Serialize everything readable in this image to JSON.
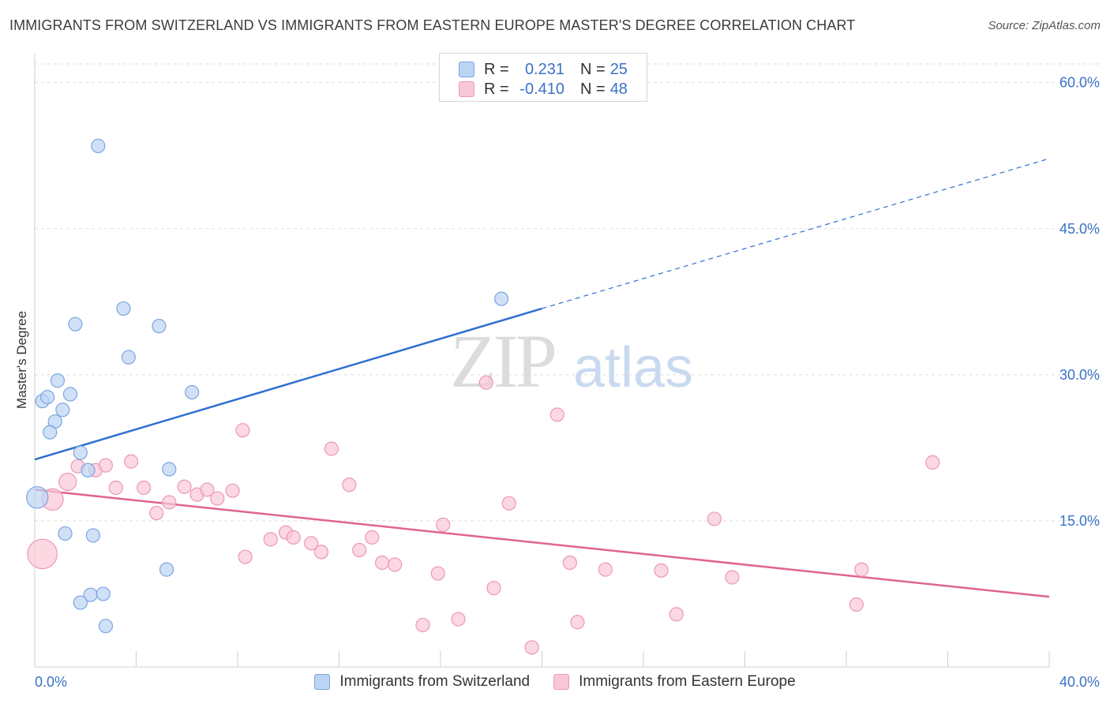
{
  "title": "IMMIGRANTS FROM SWITZERLAND VS IMMIGRANTS FROM EASTERN EUROPE MASTER'S DEGREE CORRELATION CHART",
  "source": "Source: ZipAtlas.com",
  "watermark": {
    "zip": "ZIP",
    "atlas": "atlas"
  },
  "legend": {
    "rows": [
      {
        "r_label": "R =",
        "r_value": "0.231",
        "n_label": "N =",
        "n_value": "25",
        "fill": "#bcd4f4",
        "stroke": "#7aa5e0"
      },
      {
        "r_label": "R =",
        "r_value": "-0.410",
        "n_label": "N =",
        "n_value": "48",
        "fill": "#f9c8d6",
        "stroke": "#ec98b4"
      }
    ]
  },
  "colors": {
    "blue_fill": "#bcd4f4",
    "blue_stroke": "#7aa5e0",
    "blue_line": "#2f6fd0",
    "pink_fill": "#f9c8d6",
    "pink_stroke": "#ec98b4",
    "pink_line": "#e0648e",
    "tick_label": "#3b72c8",
    "grid": "#dddddd"
  },
  "chart_data": {
    "type": "scatter",
    "title": "IMMIGRANTS FROM SWITZERLAND VS IMMIGRANTS FROM EASTERN EUROPE MASTER'S DEGREE CORRELATION CHART",
    "xlabel": "",
    "ylabel": "Master's Degree",
    "xlim": [
      0,
      40
    ],
    "ylim": [
      0,
      62
    ],
    "x_tick_labels": [
      "0.0%",
      "40.0%"
    ],
    "y_ticks": [
      15,
      30,
      45,
      60
    ],
    "y_tick_labels": [
      "15.0%",
      "30.0%",
      "45.0%",
      "60.0%"
    ],
    "grid": true,
    "legend_position": "top-center",
    "series": [
      {
        "name": "Immigrants from Switzerland",
        "points": [
          {
            "x": 2.5,
            "y": 53.5,
            "s": 1
          },
          {
            "x": 0.3,
            "y": 27.3,
            "s": 1
          },
          {
            "x": 0.5,
            "y": 27.7,
            "s": 1
          },
          {
            "x": 0.9,
            "y": 29.4,
            "s": 1
          },
          {
            "x": 1.4,
            "y": 28.0,
            "s": 1
          },
          {
            "x": 1.1,
            "y": 26.4,
            "s": 1
          },
          {
            "x": 0.8,
            "y": 25.2,
            "s": 1
          },
          {
            "x": 0.6,
            "y": 24.1,
            "s": 1
          },
          {
            "x": 1.6,
            "y": 35.2,
            "s": 1
          },
          {
            "x": 3.5,
            "y": 36.8,
            "s": 1
          },
          {
            "x": 3.7,
            "y": 31.8,
            "s": 1
          },
          {
            "x": 4.9,
            "y": 35.0,
            "s": 1
          },
          {
            "x": 6.2,
            "y": 28.2,
            "s": 1
          },
          {
            "x": 1.8,
            "y": 22.0,
            "s": 1
          },
          {
            "x": 2.1,
            "y": 20.2,
            "s": 1
          },
          {
            "x": 5.3,
            "y": 20.3,
            "s": 1
          },
          {
            "x": 0.1,
            "y": 17.4,
            "s": 1.6
          },
          {
            "x": 1.2,
            "y": 13.7,
            "s": 1
          },
          {
            "x": 2.3,
            "y": 13.5,
            "s": 1
          },
          {
            "x": 5.2,
            "y": 10.0,
            "s": 1
          },
          {
            "x": 2.2,
            "y": 7.4,
            "s": 1
          },
          {
            "x": 2.7,
            "y": 7.5,
            "s": 1
          },
          {
            "x": 1.8,
            "y": 6.6,
            "s": 1
          },
          {
            "x": 2.8,
            "y": 4.2,
            "s": 1
          },
          {
            "x": 18.4,
            "y": 37.8,
            "s": 1
          }
        ],
        "trend": {
          "x0": 0,
          "y0": 21.3,
          "x1": 20,
          "y1": 36.8,
          "dash_to_x": 40,
          "dash_to_y": 52.2
        }
      },
      {
        "name": "Immigrants from Eastern Europe",
        "points": [
          {
            "x": 0.3,
            "y": 11.6,
            "s": 2.2
          },
          {
            "x": 0.7,
            "y": 17.2,
            "s": 1.6
          },
          {
            "x": 1.3,
            "y": 19.0,
            "s": 1.3
          },
          {
            "x": 1.7,
            "y": 20.6,
            "s": 1
          },
          {
            "x": 2.4,
            "y": 20.2,
            "s": 1
          },
          {
            "x": 2.8,
            "y": 20.7,
            "s": 1
          },
          {
            "x": 3.2,
            "y": 18.4,
            "s": 1
          },
          {
            "x": 3.8,
            "y": 21.1,
            "s": 1
          },
          {
            "x": 4.3,
            "y": 18.4,
            "s": 1
          },
          {
            "x": 4.8,
            "y": 15.8,
            "s": 1
          },
          {
            "x": 5.3,
            "y": 16.9,
            "s": 1
          },
          {
            "x": 5.9,
            "y": 18.5,
            "s": 1
          },
          {
            "x": 6.4,
            "y": 17.7,
            "s": 1
          },
          {
            "x": 6.8,
            "y": 18.2,
            "s": 1
          },
          {
            "x": 7.2,
            "y": 17.3,
            "s": 1
          },
          {
            "x": 7.8,
            "y": 18.1,
            "s": 1
          },
          {
            "x": 8.2,
            "y": 24.3,
            "s": 1
          },
          {
            "x": 8.3,
            "y": 11.3,
            "s": 1
          },
          {
            "x": 9.3,
            "y": 13.1,
            "s": 1
          },
          {
            "x": 9.9,
            "y": 13.8,
            "s": 1
          },
          {
            "x": 10.2,
            "y": 13.3,
            "s": 1
          },
          {
            "x": 10.9,
            "y": 12.7,
            "s": 1
          },
          {
            "x": 11.7,
            "y": 22.4,
            "s": 1
          },
          {
            "x": 11.3,
            "y": 11.8,
            "s": 1
          },
          {
            "x": 12.4,
            "y": 18.7,
            "s": 1
          },
          {
            "x": 12.8,
            "y": 12.0,
            "s": 1
          },
          {
            "x": 13.3,
            "y": 13.3,
            "s": 1
          },
          {
            "x": 13.7,
            "y": 10.7,
            "s": 1
          },
          {
            "x": 14.2,
            "y": 10.5,
            "s": 1
          },
          {
            "x": 15.3,
            "y": 4.3,
            "s": 1
          },
          {
            "x": 15.9,
            "y": 9.6,
            "s": 1
          },
          {
            "x": 16.1,
            "y": 14.6,
            "s": 1
          },
          {
            "x": 16.7,
            "y": 4.9,
            "s": 1
          },
          {
            "x": 17.8,
            "y": 29.2,
            "s": 1
          },
          {
            "x": 18.1,
            "y": 8.1,
            "s": 1
          },
          {
            "x": 18.7,
            "y": 16.8,
            "s": 1
          },
          {
            "x": 19.6,
            "y": 2.0,
            "s": 1
          },
          {
            "x": 20.6,
            "y": 25.9,
            "s": 1
          },
          {
            "x": 21.1,
            "y": 10.7,
            "s": 1
          },
          {
            "x": 21.4,
            "y": 4.6,
            "s": 1
          },
          {
            "x": 22.5,
            "y": 10.0,
            "s": 1
          },
          {
            "x": 24.7,
            "y": 9.9,
            "s": 1
          },
          {
            "x": 25.3,
            "y": 5.4,
            "s": 1
          },
          {
            "x": 26.8,
            "y": 15.2,
            "s": 1
          },
          {
            "x": 27.5,
            "y": 9.2,
            "s": 1
          },
          {
            "x": 32.4,
            "y": 6.4,
            "s": 1
          },
          {
            "x": 32.6,
            "y": 10.0,
            "s": 1
          },
          {
            "x": 35.4,
            "y": 21.0,
            "s": 1
          }
        ],
        "trend": {
          "x0": 0,
          "y0": 18.2,
          "x1": 40,
          "y1": 7.2
        }
      }
    ]
  },
  "bottom_legend": [
    {
      "label": "Immigrants from Switzerland",
      "fill": "#bcd4f4",
      "stroke": "#7aa5e0"
    },
    {
      "label": "Immigrants from Eastern Europe",
      "fill": "#f9c8d6",
      "stroke": "#ec98b4"
    }
  ]
}
